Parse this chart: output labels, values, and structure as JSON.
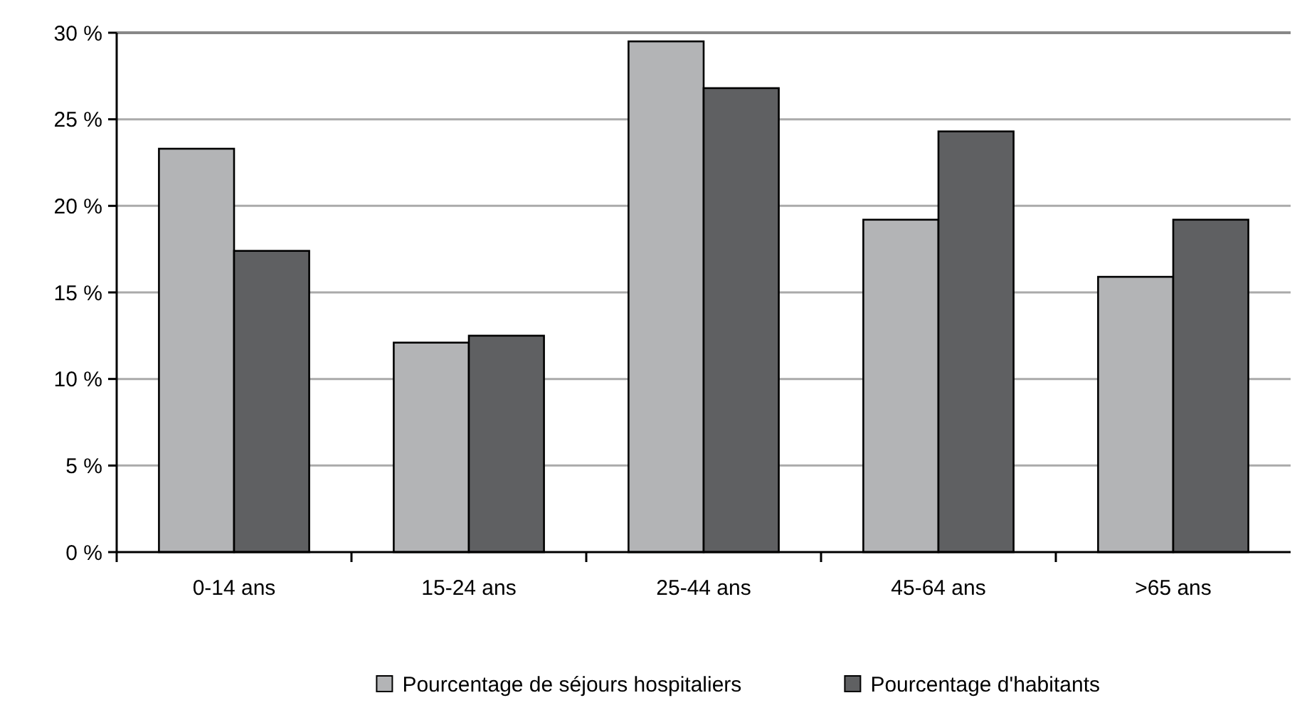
{
  "chart_data": {
    "type": "bar",
    "categories": [
      "0-14 ans",
      "15-24 ans",
      "25-44 ans",
      "45-64 ans",
      ">65 ans"
    ],
    "series": [
      {
        "name": "Pourcentage de séjours hospitaliers",
        "color": "#b3b4b6",
        "values": [
          23.3,
          12.1,
          29.5,
          19.2,
          15.9
        ]
      },
      {
        "name": "Pourcentage d'habitants",
        "color": "#5f6062",
        "values": [
          17.4,
          12.5,
          26.8,
          24.3,
          19.2
        ]
      }
    ],
    "ylim": [
      0,
      30
    ],
    "yticks": [
      {
        "value": 0,
        "label": "0 %"
      },
      {
        "value": 5,
        "label": "5 %"
      },
      {
        "value": 10,
        "label": "10 %"
      },
      {
        "value": 15,
        "label": "15 %"
      },
      {
        "value": 20,
        "label": "20 %"
      },
      {
        "value": 25,
        "label": "25 %"
      },
      {
        "value": 30,
        "label": "30 %"
      }
    ],
    "grid": "y",
    "legend": "bottom"
  }
}
